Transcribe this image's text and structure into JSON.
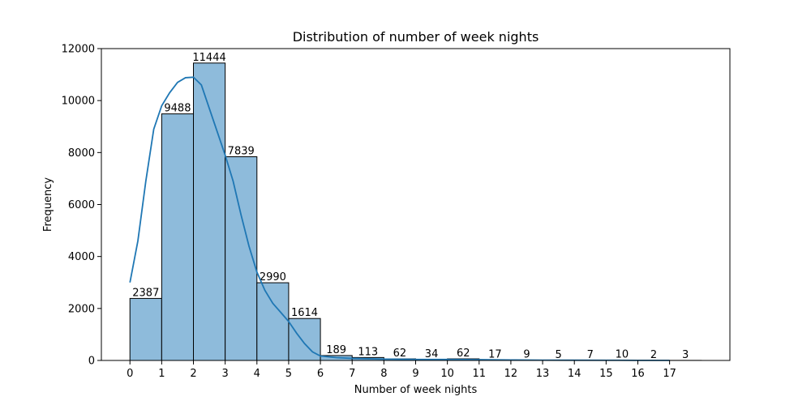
{
  "chart_data": {
    "type": "bar",
    "title": "Distribution of number of week nights",
    "xlabel": "Number of week nights",
    "ylabel": "Frequency",
    "bins": [
      0,
      1,
      2,
      3,
      4,
      5,
      6,
      7,
      8,
      9,
      10,
      11,
      12,
      13,
      14,
      15,
      16,
      17
    ],
    "values": [
      2387,
      9488,
      11444,
      7839,
      2990,
      1614,
      189,
      113,
      62,
      34,
      62,
      17,
      9,
      5,
      7,
      10,
      2,
      3
    ],
    "xticks": [
      "0",
      "1",
      "2",
      "3",
      "4",
      "5",
      "6",
      "7",
      "8",
      "9",
      "10",
      "11",
      "12",
      "13",
      "14",
      "15",
      "16",
      "17"
    ],
    "yticks": [
      "0",
      "2000",
      "4000",
      "6000",
      "8000",
      "10000",
      "12000"
    ],
    "ylim": [
      0,
      12000
    ],
    "bar_color": "#8ebbdb",
    "bar_edge_color": "#000000",
    "kde_color": "#1f77b4",
    "kde": {
      "x": [
        0,
        0.25,
        0.5,
        0.75,
        1.0,
        1.25,
        1.5,
        1.75,
        2.0,
        2.25,
        2.5,
        2.75,
        3.0,
        3.25,
        3.5,
        3.75,
        4.0,
        4.25,
        4.5,
        4.75,
        5.0,
        5.25,
        5.5,
        5.75,
        6.0,
        6.5,
        7.0,
        8.0,
        9.0,
        10.0,
        11.0,
        12.0,
        13.0,
        14.0,
        15.0,
        16.0,
        17.0
      ],
      "y": [
        3000,
        4600,
        6900,
        8900,
        9800,
        10300,
        10700,
        10880,
        10900,
        10600,
        9700,
        8800,
        7900,
        6900,
        5600,
        4400,
        3400,
        2700,
        2200,
        1850,
        1500,
        1050,
        650,
        330,
        170,
        110,
        80,
        50,
        40,
        38,
        30,
        18,
        12,
        10,
        8,
        5,
        3
      ]
    }
  }
}
